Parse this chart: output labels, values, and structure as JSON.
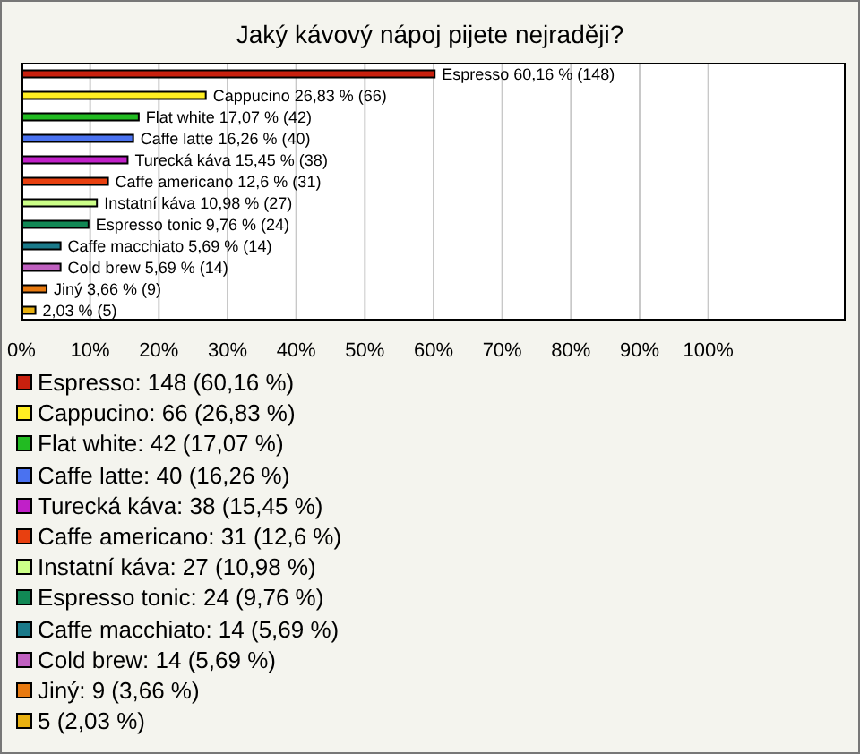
{
  "chart_data": {
    "type": "bar",
    "orientation": "horizontal",
    "title": "Jaký kávový nápoj pijete nejraději?",
    "categories": [
      "Espresso",
      "Cappucino",
      "Flat white",
      "Caffe latte",
      "Turecká káva",
      "Caffe americano",
      "Instatní káva",
      "Espresso tonic",
      "Caffe macchiato",
      "Cold brew",
      "Jiný",
      null
    ],
    "values": [
      60.16,
      26.83,
      17.07,
      16.26,
      15.45,
      12.6,
      10.98,
      9.76,
      5.69,
      5.69,
      3.66,
      2.03
    ],
    "value_labels": [
      "60,16 % (148)",
      "26,83 % (66)",
      "17,07 % (42)",
      "16,26 % (40)",
      "15,45 % (38)",
      "12,6 % (31)",
      "10,98 % (27)",
      "9,76 % (24)",
      "5,69 % (14)",
      "5,69 % (14)",
      "3,66 % (9)",
      "2,03 % (5)"
    ],
    "colors": [
      "#c8200e",
      "#ffee22",
      "#22bb22",
      "#4a72f0",
      "#c020c8",
      "#e84010",
      "#ccff88",
      "#118855",
      "#1a7a8a",
      "#c060c0",
      "#e87a10",
      "#e8b010"
    ],
    "xlim": [
      0,
      120
    ],
    "xticks": [
      {
        "value": 0,
        "label": "0%"
      },
      {
        "value": 10,
        "label": "10%"
      },
      {
        "value": 20,
        "label": "20%"
      },
      {
        "value": 30,
        "label": "30%"
      },
      {
        "value": 40,
        "label": "40%"
      },
      {
        "value": 50,
        "label": "50%"
      },
      {
        "value": 60,
        "label": "60%"
      },
      {
        "value": 70,
        "label": "70%"
      },
      {
        "value": 80,
        "label": "80%"
      },
      {
        "value": 90,
        "label": "90%"
      },
      {
        "value": 100,
        "label": "100%"
      }
    ],
    "grid": "x",
    "tick_labels": "x",
    "annotations": [
      "Espresso: 148 (60,16 %)",
      "Cappucino: 66 (26,83 %)",
      "Flat white: 42 (17,07 %)",
      "Caffe latte: 40 (16,26 %)",
      "Turecká káva: 38 (15,45 %)",
      "Caffe americano: 31 (12,6 %)",
      "Instatní káva: 27 (10,98 %)",
      "Espresso tonic: 24 (9,76 %)",
      "Caffe macchiato: 14 (5,69 %)",
      "Cold brew: 14 (5,69 %)",
      "Jiný: 9 (3,66 %)",
      "5 (2,03 %)"
    ]
  }
}
